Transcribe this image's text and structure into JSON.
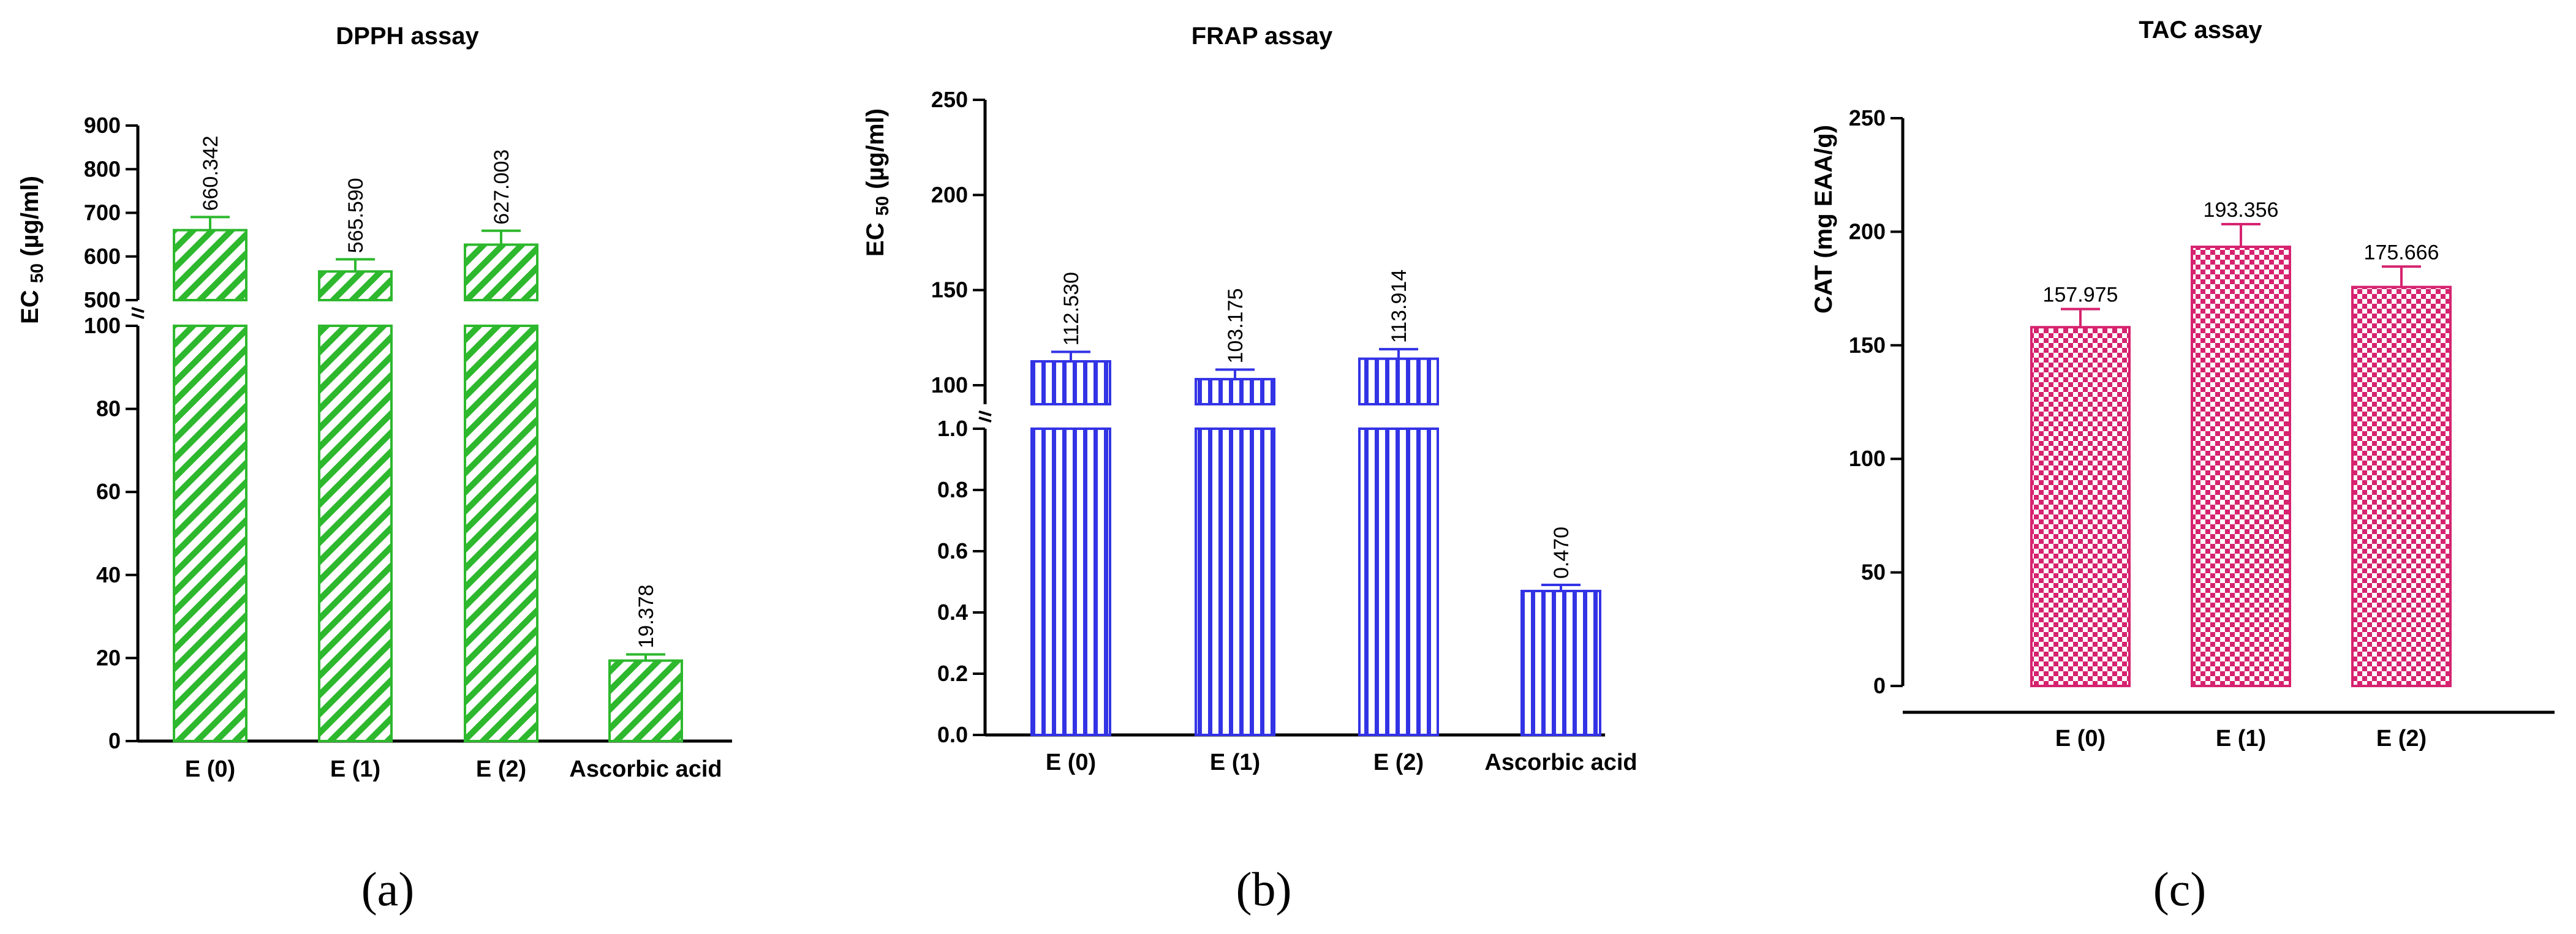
{
  "chart_data": [
    {
      "type": "bar",
      "title": "DPPH assay",
      "ylabel": "EC 50 (µg/ml)",
      "ylabel_main": "EC ",
      "ylabel_sub": "50",
      "ylabel_unit": " (µg/ml)",
      "panel_label": "(a)",
      "broken_axis": true,
      "ylim_lower": [
        0,
        100
      ],
      "ylim_upper": [
        500,
        900
      ],
      "yticks_lower": [
        0,
        20,
        40,
        60,
        80,
        100
      ],
      "yticks_upper": [
        500,
        600,
        700,
        800,
        900
      ],
      "categories": [
        "E (0)",
        "E (1)",
        "E (2)",
        "Ascorbic acid"
      ],
      "values": [
        660.342,
        565.59,
        627.003,
        19.378
      ],
      "errors": [
        30,
        28,
        32,
        1.5
      ],
      "value_labels": [
        "660.342",
        "565.590",
        "627.003",
        "19.378"
      ],
      "color": "#2db82d",
      "pattern": "diagonal-stripes"
    },
    {
      "type": "bar",
      "title": "FRAP assay",
      "ylabel": "EC 50 (µg/ml)",
      "ylabel_main": "EC ",
      "ylabel_sub": "50",
      "ylabel_unit": " (µg/ml)",
      "panel_label": "(b)",
      "broken_axis": true,
      "ylim_lower": [
        0,
        1
      ],
      "ylim_upper": [
        90,
        250
      ],
      "yticks_lower": [
        "0.0",
        "0.2",
        "0.4",
        "0.6",
        "0.8",
        "1.0"
      ],
      "yticks_upper": [
        100,
        150,
        200,
        250
      ],
      "categories": [
        "E (0)",
        "E (1)",
        "E (2)",
        "Ascorbic acid"
      ],
      "values": [
        112.53,
        103.175,
        113.914,
        0.47
      ],
      "errors": [
        5,
        5,
        5,
        0.02
      ],
      "value_labels": [
        "112.530",
        "103.175",
        "113.914",
        "0.470"
      ],
      "color": "#3333e6",
      "pattern": "vertical-stripes"
    },
    {
      "type": "bar",
      "title": "TAC assay",
      "ylabel": "CAT (mg EAA/g)",
      "panel_label": "(c)",
      "broken_axis": false,
      "ylim": [
        0,
        250
      ],
      "yticks": [
        0,
        50,
        100,
        150,
        200,
        250
      ],
      "categories": [
        "E (0)",
        "E (1)",
        "E (2)"
      ],
      "values": [
        157.975,
        193.356,
        175.666
      ],
      "errors": [
        8,
        10,
        9
      ],
      "value_labels": [
        "157.975",
        "193.356",
        "175.666"
      ],
      "color": "#d6236f",
      "pattern": "checkerboard"
    }
  ]
}
